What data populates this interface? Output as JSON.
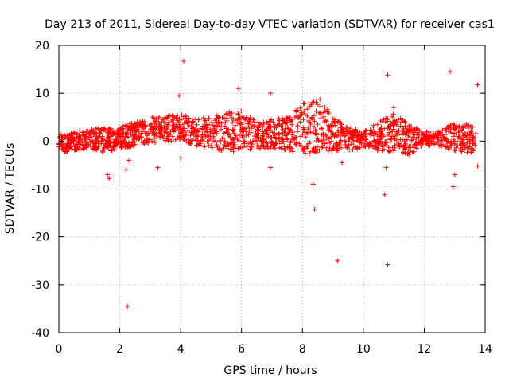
{
  "chart_data": {
    "type": "scatter",
    "title": "Day 213 of 2011, Sidereal Day-to-day VTEC variation (SDTVAR) for receiver cas1",
    "xlabel": "GPS time / hours",
    "ylabel": "SDTVAR / TECUs",
    "xlim": [
      0,
      14
    ],
    "ylim": [
      -40,
      20
    ],
    "x_ticks": [
      0,
      2,
      4,
      6,
      8,
      10,
      12,
      14
    ],
    "x_tick_labels": [
      "0",
      "2",
      "4",
      "6",
      "8",
      "10",
      "12",
      "14"
    ],
    "y_ticks": [
      -40,
      -30,
      -20,
      -10,
      0,
      10,
      20
    ],
    "y_tick_labels": [
      "-40",
      "-30",
      "-20",
      "-10",
      "0",
      "10",
      "20"
    ],
    "grid": true,
    "marker": "+",
    "series_color": "#ff0000",
    "band": {
      "x": [
        0.0,
        0.5,
        1.0,
        1.5,
        2.0,
        2.5,
        3.0,
        3.5,
        4.0,
        4.5,
        5.0,
        5.5,
        6.0,
        6.5,
        7.0,
        7.5,
        8.0,
        8.5,
        9.0,
        9.5,
        10.0,
        10.5,
        11.0,
        11.5,
        12.0,
        12.5,
        13.0,
        13.5,
        13.7
      ],
      "low": [
        -2.5,
        -2.0,
        -1.5,
        -2.5,
        -1.5,
        -1.0,
        -0.5,
        0.0,
        0.0,
        -1.0,
        -1.5,
        -2.5,
        -2.0,
        -1.5,
        -2.0,
        -2.0,
        -2.5,
        -3.0,
        -2.0,
        -2.0,
        -1.5,
        -2.0,
        -2.5,
        -3.0,
        -1.0,
        -1.0,
        -2.0,
        -2.5,
        -2.0
      ],
      "high": [
        1.5,
        2.0,
        2.5,
        3.0,
        3.0,
        4.0,
        5.0,
        5.5,
        5.5,
        5.0,
        5.0,
        6.0,
        6.5,
        4.0,
        4.5,
        5.0,
        8.0,
        9.5,
        5.0,
        3.0,
        2.0,
        4.0,
        6.0,
        3.5,
        2.0,
        2.0,
        4.0,
        3.5,
        3.0
      ]
    },
    "outliers": {
      "x": [
        2.25,
        4.1,
        3.95,
        5.9,
        6.95,
        8.4,
        9.15,
        10.8,
        10.7,
        10.8,
        12.85,
        13.75,
        13.75,
        12.95,
        1.6,
        1.65,
        2.2,
        2.3,
        3.25,
        4.0,
        8.35,
        6.95,
        10.75,
        13.0,
        9.3,
        11.0
      ],
      "y": [
        -34.5,
        16.7,
        9.5,
        11.0,
        10.0,
        -14.2,
        -25.0,
        -25.8,
        -11.2,
        13.8,
        14.5,
        11.8,
        -5.2,
        -9.5,
        -7.0,
        -7.8,
        -6.0,
        -4.0,
        -5.5,
        -3.5,
        -9.0,
        -5.5,
        -5.5,
        -7.0,
        -4.5,
        7.0
      ]
    }
  }
}
